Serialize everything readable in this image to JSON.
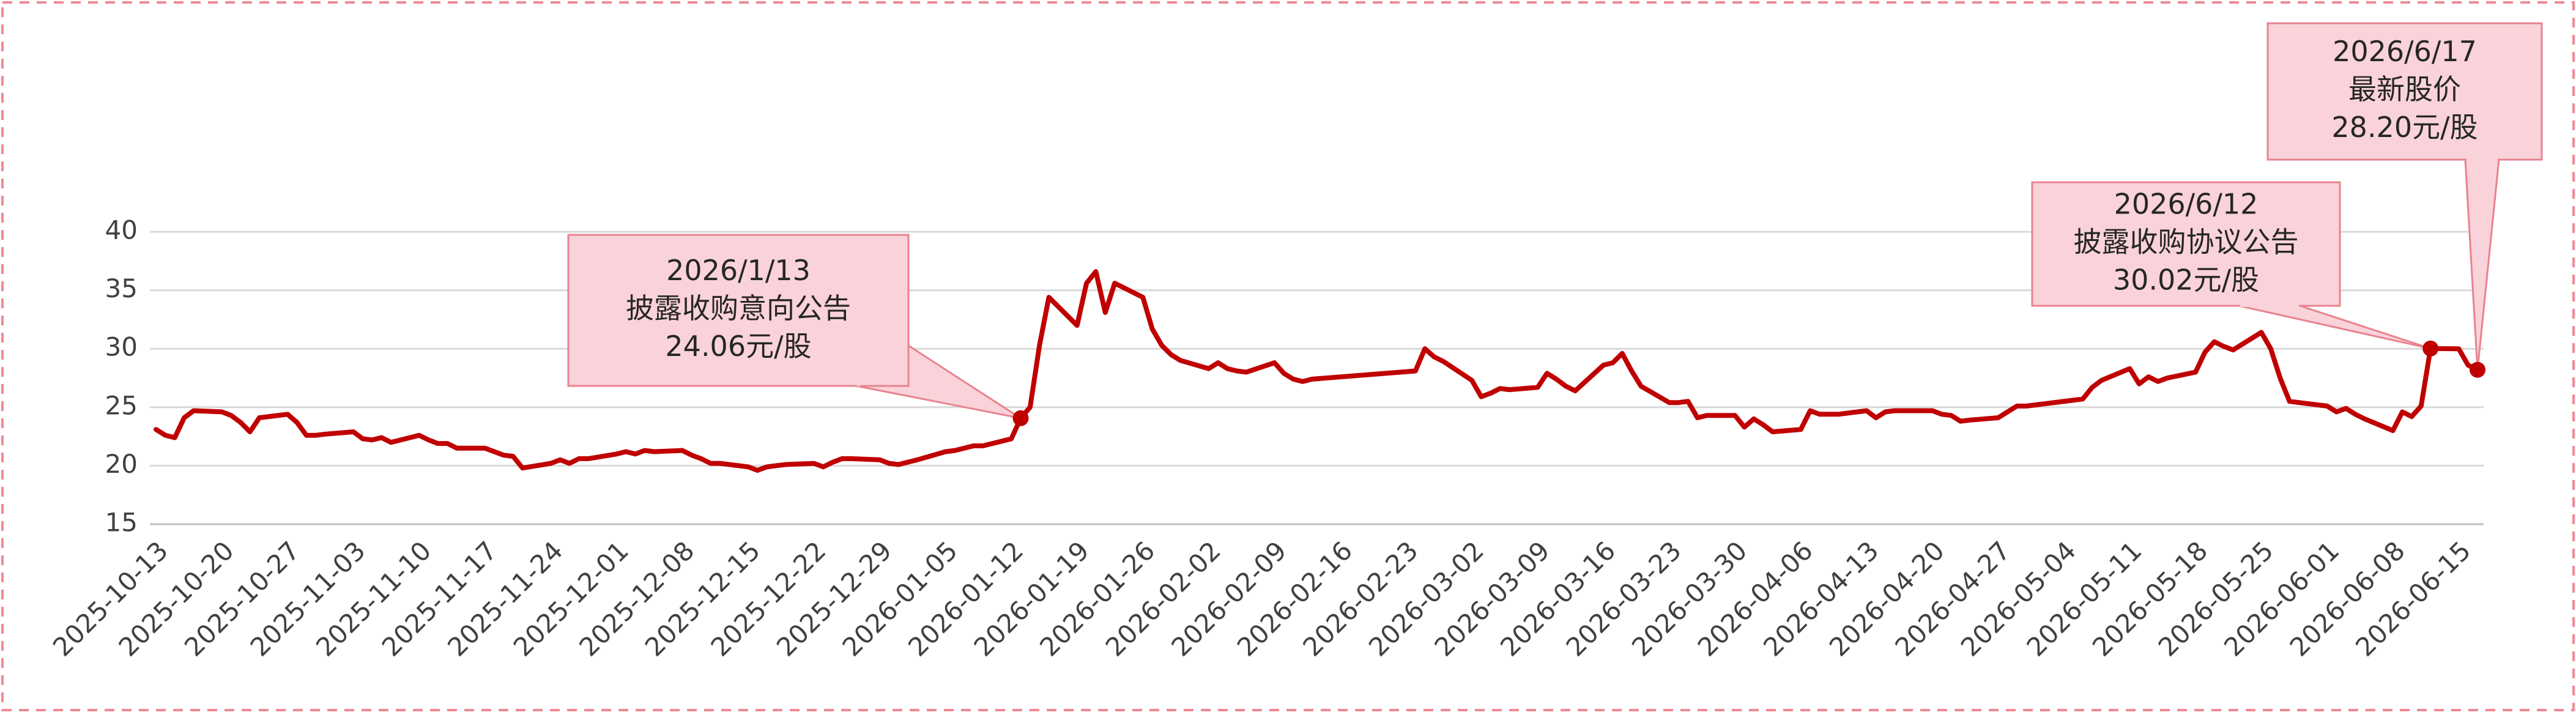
{
  "chart_data": {
    "type": "line",
    "x": [
      "2025-10-13",
      "2025-10-14",
      "2025-10-15",
      "2025-10-16",
      "2025-10-17",
      "2025-10-20",
      "2025-10-21",
      "2025-10-22",
      "2025-10-23",
      "2025-10-24",
      "2025-10-27",
      "2025-10-28",
      "2025-10-29",
      "2025-10-30",
      "2025-10-31",
      "2025-11-03",
      "2025-11-04",
      "2025-11-05",
      "2025-11-06",
      "2025-11-07",
      "2025-11-10",
      "2025-11-11",
      "2025-11-12",
      "2025-11-13",
      "2025-11-14",
      "2025-11-17",
      "2025-11-18",
      "2025-11-19",
      "2025-11-20",
      "2025-11-21",
      "2025-11-24",
      "2025-11-25",
      "2025-11-26",
      "2025-11-27",
      "2025-11-28",
      "2025-12-01",
      "2025-12-02",
      "2025-12-03",
      "2025-12-04",
      "2025-12-05",
      "2025-12-08",
      "2025-12-09",
      "2025-12-10",
      "2025-12-11",
      "2025-12-12",
      "2025-12-15",
      "2025-12-16",
      "2025-12-17",
      "2025-12-18",
      "2025-12-19",
      "2025-12-22",
      "2025-12-23",
      "2025-12-24",
      "2025-12-25",
      "2025-12-26",
      "2025-12-29",
      "2025-12-30",
      "2025-12-31",
      "2026-01-02",
      "2026-01-05",
      "2026-01-06",
      "2026-01-07",
      "2026-01-08",
      "2026-01-09",
      "2026-01-12",
      "2026-01-13",
      "2026-01-14",
      "2026-01-15",
      "2026-01-16",
      "2026-01-19",
      "2026-01-20",
      "2026-01-21",
      "2026-01-22",
      "2026-01-23",
      "2026-01-26",
      "2026-01-27",
      "2026-01-28",
      "2026-01-29",
      "2026-01-30",
      "2026-02-02",
      "2026-02-03",
      "2026-02-04",
      "2026-02-05",
      "2026-02-06",
      "2026-02-09",
      "2026-02-10",
      "2026-02-11",
      "2026-02-12",
      "2026-02-13",
      "2026-02-24",
      "2026-02-25",
      "2026-02-26",
      "2026-02-27",
      "2026-03-02",
      "2026-03-03",
      "2026-03-04",
      "2026-03-05",
      "2026-03-06",
      "2026-03-09",
      "2026-03-10",
      "2026-03-11",
      "2026-03-12",
      "2026-03-13",
      "2026-03-16",
      "2026-03-17",
      "2026-03-18",
      "2026-03-19",
      "2026-03-20",
      "2026-03-23",
      "2026-03-24",
      "2026-03-25",
      "2026-03-26",
      "2026-03-27",
      "2026-03-30",
      "2026-03-31",
      "2026-04-01",
      "2026-04-02",
      "2026-04-03",
      "2026-04-06",
      "2026-04-07",
      "2026-04-08",
      "2026-04-09",
      "2026-04-10",
      "2026-04-13",
      "2026-04-14",
      "2026-04-15",
      "2026-04-16",
      "2026-04-17",
      "2026-04-20",
      "2026-04-21",
      "2026-04-22",
      "2026-04-23",
      "2026-04-24",
      "2026-04-27",
      "2026-04-28",
      "2026-04-29",
      "2026-04-30",
      "2026-05-06",
      "2026-05-07",
      "2026-05-08",
      "2026-05-11",
      "2026-05-12",
      "2026-05-13",
      "2026-05-14",
      "2026-05-15",
      "2026-05-18",
      "2026-05-19",
      "2026-05-20",
      "2026-05-21",
      "2026-05-22",
      "2026-05-25",
      "2026-05-26",
      "2026-05-27",
      "2026-05-28",
      "2026-05-29",
      "2026-06-01",
      "2026-06-02",
      "2026-06-03",
      "2026-06-04",
      "2026-06-05",
      "2026-06-08",
      "2026-06-09",
      "2026-06-10",
      "2026-06-11",
      "2026-06-12",
      "2026-06-15",
      "2026-06-16",
      "2026-06-17"
    ],
    "values": [
      23.1,
      22.6,
      22.4,
      24.1,
      24.7,
      24.6,
      24.3,
      23.7,
      22.9,
      24.1,
      24.4,
      23.7,
      22.6,
      22.6,
      22.7,
      22.9,
      22.3,
      22.2,
      22.4,
      22.0,
      22.6,
      22.2,
      21.9,
      21.9,
      21.5,
      21.5,
      21.2,
      20.9,
      20.8,
      19.8,
      20.2,
      20.5,
      20.2,
      20.6,
      20.6,
      21.0,
      21.2,
      21.0,
      21.3,
      21.2,
      21.3,
      20.9,
      20.6,
      20.2,
      20.2,
      19.9,
      19.6,
      19.9,
      20.0,
      20.1,
      20.2,
      19.9,
      20.3,
      20.6,
      20.6,
      20.5,
      20.2,
      20.1,
      20.5,
      21.2,
      21.3,
      21.5,
      21.7,
      21.7,
      22.3,
      24.06,
      25.0,
      30.3,
      34.4,
      32.0,
      35.6,
      36.6,
      33.1,
      35.6,
      34.4,
      31.7,
      30.3,
      29.5,
      29.0,
      28.3,
      28.8,
      28.3,
      28.1,
      28.0,
      28.8,
      27.9,
      27.4,
      27.2,
      27.4,
      28.1,
      30.0,
      29.3,
      28.9,
      27.3,
      25.9,
      26.2,
      26.6,
      26.5,
      26.7,
      27.9,
      27.4,
      26.8,
      26.4,
      28.6,
      28.8,
      29.6,
      28.1,
      26.8,
      25.4,
      25.4,
      25.5,
      24.1,
      24.3,
      24.3,
      23.3,
      24.0,
      23.5,
      22.9,
      23.1,
      24.7,
      24.4,
      24.4,
      24.4,
      24.7,
      24.1,
      24.6,
      24.7,
      24.7,
      24.7,
      24.4,
      24.3,
      23.8,
      23.9,
      24.1,
      24.6,
      25.1,
      25.1,
      25.7,
      26.7,
      27.3,
      28.3,
      27.0,
      27.6,
      27.2,
      27.5,
      28.0,
      29.7,
      30.6,
      30.2,
      29.9,
      31.4,
      30.0,
      27.5,
      25.5,
      25.4,
      25.1,
      24.6,
      24.9,
      24.4,
      24.0,
      23.0,
      24.6,
      24.2,
      25.1,
      30.02,
      30.0,
      28.6,
      28.2
    ],
    "color": "#c00000",
    "xlim": [
      "2025-10-13",
      "2026-06-17"
    ],
    "xticks": [
      "2025-10-13",
      "2025-10-20",
      "2025-10-27",
      "2025-11-03",
      "2025-11-10",
      "2025-11-17",
      "2025-11-24",
      "2025-12-01",
      "2025-12-08",
      "2025-12-15",
      "2025-12-22",
      "2025-12-29",
      "2026-01-05",
      "2026-01-12",
      "2026-01-19",
      "2026-01-26",
      "2026-02-02",
      "2026-02-09",
      "2026-02-16",
      "2026-02-23",
      "2026-03-02",
      "2026-03-09",
      "2026-03-16",
      "2026-03-23",
      "2026-03-30",
      "2026-04-06",
      "2026-04-13",
      "2026-04-20",
      "2026-04-27",
      "2026-05-04",
      "2026-05-11",
      "2026-05-18",
      "2026-05-25",
      "2026-06-01",
      "2026-06-08",
      "2026-06-15"
    ],
    "ylim": [
      15,
      40
    ],
    "yticks": [
      15,
      20,
      25,
      30,
      35,
      40
    ],
    "grid": true,
    "annotations": [
      {
        "text": [
          "2026/1/13",
          "披露收购意向公告",
          "24.06元/股"
        ]
      },
      {
        "text": [
          "2026/6/12",
          "披露收购协议公告",
          "30.02元/股"
        ]
      },
      {
        "text": [
          "2026/6/17",
          "最新股价",
          "28.20元/股"
        ]
      }
    ]
  }
}
